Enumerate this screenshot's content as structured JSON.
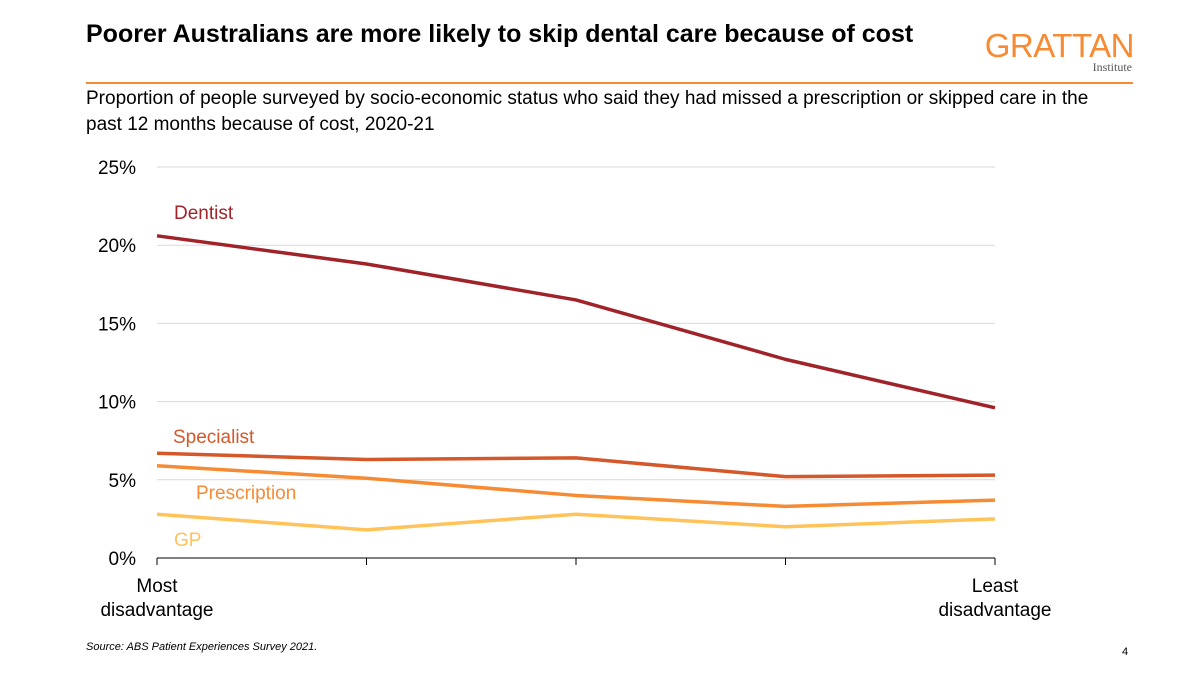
{
  "header": {
    "title": "Poorer Australians are more likely to skip dental care because of cost",
    "subtitle": "Proportion of people surveyed by socio-economic status who said they had missed a prescription or skipped care in the past 12 months because of cost, 2020-21"
  },
  "logo": {
    "name": "GRATTAN",
    "sub": "Institute",
    "color": "#f68b33"
  },
  "chart_data": {
    "type": "line",
    "x": [
      "Most disadvantage",
      "",
      "",
      "",
      "Least disadvantage"
    ],
    "ylim": [
      0,
      25
    ],
    "yticks": [
      0,
      5,
      10,
      15,
      20,
      25
    ],
    "ytick_labels": [
      "0%",
      "5%",
      "10%",
      "15%",
      "20%",
      "25%"
    ],
    "grid": true,
    "legend": "inline",
    "series": [
      {
        "name": "Dentist",
        "values": [
          20.6,
          18.8,
          16.5,
          12.7,
          9.6
        ],
        "color": "#a0232a"
      },
      {
        "name": "Specialist",
        "values": [
          6.7,
          6.3,
          6.4,
          5.2,
          5.3
        ],
        "color": "#d4582a"
      },
      {
        "name": "Prescription",
        "values": [
          5.9,
          5.1,
          4.0,
          3.3,
          3.7
        ],
        "color": "#f68b33"
      },
      {
        "name": "GP",
        "values": [
          2.8,
          1.8,
          2.8,
          2.0,
          2.5
        ],
        "color": "#ffc35a"
      }
    ]
  },
  "footer": {
    "source": "Source: ABS Patient Experiences Survey 2021.",
    "page": "4"
  }
}
